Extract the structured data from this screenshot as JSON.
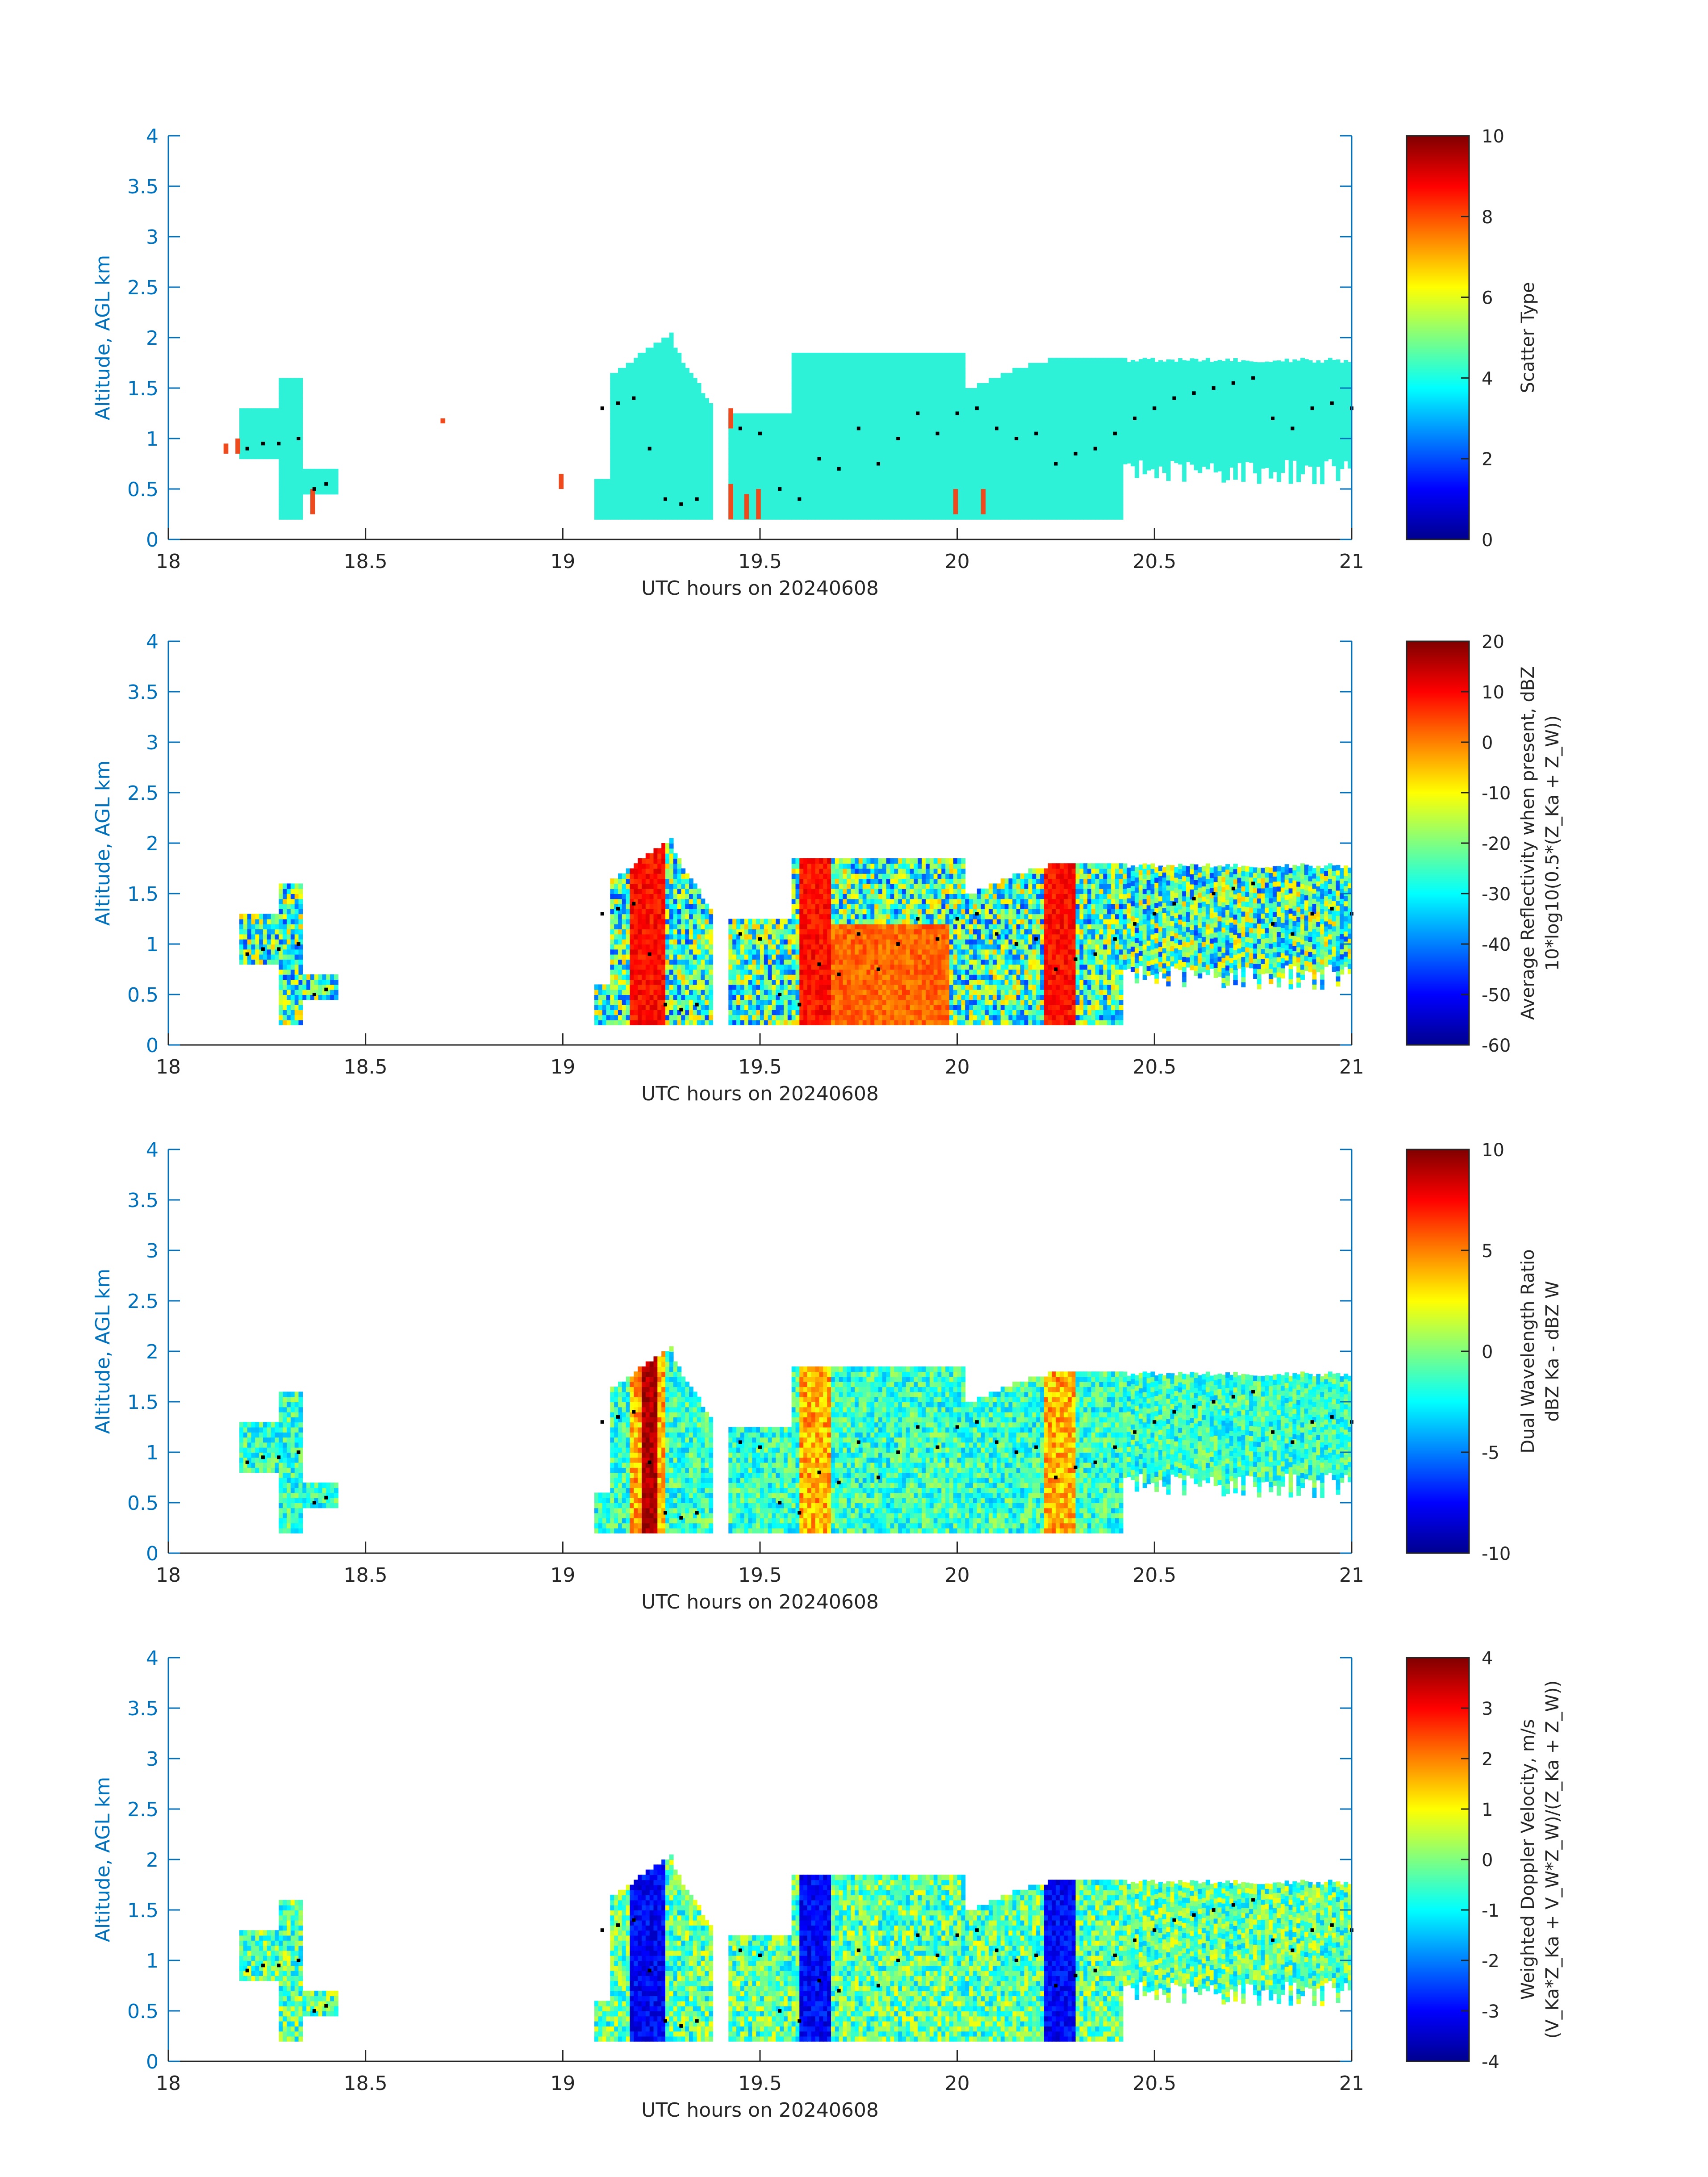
{
  "colors": {
    "axis": "#0072bd",
    "text": "#262626",
    "marker": "#000000",
    "scatter_main": "#2ef2d8",
    "scatter_secondary": "#ee4a1e"
  },
  "panels": [
    {
      "colorbar": {
        "label": "Scatter Type",
        "label2": "",
        "min": 0,
        "max": 10,
        "ticks": [
          "10",
          "8",
          "6",
          "4",
          "2",
          "0"
        ]
      }
    },
    {
      "colorbar": {
        "label": "Average Reflectivity when present, dBZ",
        "label2": "10*log10(0.5*(Z_Ka + Z_W))",
        "min": -60,
        "max": 20,
        "ticks": [
          "20",
          "10",
          "0",
          "-10",
          "-20",
          "-30",
          "-40",
          "-50",
          "-60"
        ]
      }
    },
    {
      "colorbar": {
        "label": "Dual Wavelength Ratio",
        "label2": "dBZ Ka - dBZ W",
        "min": -10,
        "max": 10,
        "ticks": [
          "10",
          "5",
          "0",
          "-5",
          "-10"
        ]
      }
    },
    {
      "colorbar": {
        "label": "Weighted Doppler Velocity, m/s",
        "label2": "(V_Ka*Z_Ka + V_W*Z_W)/(Z_Ka + Z_W))",
        "min": -4,
        "max": 4,
        "ticks": [
          "4",
          "3",
          "2",
          "1",
          "0",
          "-1",
          "-2",
          "-3",
          "-4"
        ]
      }
    }
  ],
  "chart_data": [
    {
      "type": "heatmap",
      "xlabel": "UTC hours on 20240608",
      "ylabel": "Altitude, AGL km",
      "xlim": [
        18,
        21
      ],
      "ylim": [
        0,
        4
      ],
      "xticks": [
        "18",
        "18.5",
        "19",
        "19.5",
        "20",
        "20.5",
        "21"
      ],
      "yticks": [
        "0",
        "0.5",
        "1",
        "1.5",
        "2",
        "2.5",
        "3",
        "3.5",
        "4"
      ],
      "colorbar_label": "Scatter Type",
      "clim": [
        0,
        10
      ],
      "echo_regions": [
        {
          "x0": 18.28,
          "x1": 18.42,
          "bottom": 0.2,
          "top": 1.6
        },
        {
          "x0": 18.18,
          "x1": 18.28,
          "bottom": 0.8,
          "top": 1.4
        },
        {
          "x0": 19.08,
          "x1": 19.38,
          "bottom": 0.2,
          "top": 2.05
        },
        {
          "x0": 19.42,
          "x1": 19.6,
          "bottom": 0.2,
          "top": 1.3
        },
        {
          "x0": 19.6,
          "x1": 20.05,
          "bottom": 0.2,
          "top": 1.95
        },
        {
          "x0": 20.05,
          "x1": 20.4,
          "bottom": 0.2,
          "top": 1.8
        },
        {
          "x0": 20.4,
          "x1": 21.0,
          "bottom": 0.5,
          "top": 1.85
        }
      ],
      "secondary_type_patches": [
        {
          "x": 18.14,
          "bottom": 0.85,
          "top": 0.95
        },
        {
          "x": 18.17,
          "bottom": 0.85,
          "top": 1.0
        },
        {
          "x": 18.36,
          "bottom": 0.25,
          "top": 0.5
        },
        {
          "x": 18.69,
          "bottom": 1.15,
          "top": 1.2
        },
        {
          "x": 18.99,
          "bottom": 0.5,
          "top": 0.65
        },
        {
          "x": 19.42,
          "bottom": 1.1,
          "top": 1.3
        },
        {
          "x": 19.42,
          "bottom": 0.2,
          "top": 0.55
        },
        {
          "x": 19.46,
          "bottom": 0.2,
          "top": 0.45
        },
        {
          "x": 19.49,
          "bottom": 0.2,
          "top": 0.5
        },
        {
          "x": 19.99,
          "bottom": 0.25,
          "top": 0.5
        },
        {
          "x": 20.06,
          "bottom": 0.25,
          "top": 0.5
        }
      ]
    },
    {
      "type": "heatmap",
      "xlabel": "UTC hours on 20240608",
      "ylabel": "Altitude, AGL km",
      "xlim": [
        18,
        21
      ],
      "ylim": [
        0,
        4
      ],
      "xticks": [
        "18",
        "18.5",
        "19",
        "19.5",
        "20",
        "20.5",
        "21"
      ],
      "yticks": [
        "0",
        "0.5",
        "1",
        "1.5",
        "2",
        "2.5",
        "3",
        "3.5",
        "4"
      ],
      "colorbar_label": "Average Reflectivity when present, dBZ",
      "clim": [
        -60,
        20
      ]
    },
    {
      "type": "heatmap",
      "xlabel": "UTC hours on 20240608",
      "ylabel": "Altitude, AGL km",
      "xlim": [
        18,
        21
      ],
      "ylim": [
        0,
        4
      ],
      "xticks": [
        "18",
        "18.5",
        "19",
        "19.5",
        "20",
        "20.5",
        "21"
      ],
      "yticks": [
        "0",
        "0.5",
        "1",
        "1.5",
        "2",
        "2.5",
        "3",
        "3.5",
        "4"
      ],
      "colorbar_label": "Dual Wavelength Ratio",
      "clim": [
        -10,
        10
      ]
    },
    {
      "type": "heatmap",
      "xlabel": "UTC hours on 20240608",
      "ylabel": "Altitude, AGL km",
      "xlim": [
        18,
        21
      ],
      "ylim": [
        0,
        4
      ],
      "xticks": [
        "18",
        "18.5",
        "19",
        "19.5",
        "20",
        "20.5",
        "21"
      ],
      "yticks": [
        "0",
        "0.5",
        "1",
        "1.5",
        "2",
        "2.5",
        "3",
        "3.5",
        "4"
      ],
      "colorbar_label": "Weighted Doppler Velocity, m/s",
      "clim": [
        -4,
        4
      ]
    }
  ],
  "cloud_base_markers": {
    "x": [
      18.2,
      18.24,
      18.28,
      18.33,
      18.37,
      18.4,
      19.1,
      19.14,
      19.18,
      19.22,
      19.26,
      19.3,
      19.34,
      19.45,
      19.5,
      19.55,
      19.6,
      19.65,
      19.7,
      19.75,
      19.8,
      19.85,
      19.9,
      19.95,
      20.0,
      20.05,
      20.1,
      20.15,
      20.2,
      20.25,
      20.3,
      20.35,
      20.4,
      20.45,
      20.5,
      20.55,
      20.6,
      20.65,
      20.7,
      20.75,
      20.8,
      20.85,
      20.9,
      20.95,
      21.0
    ],
    "y": [
      0.9,
      0.95,
      0.95,
      1.0,
      0.5,
      0.55,
      1.3,
      1.35,
      1.4,
      0.9,
      0.4,
      0.35,
      0.4,
      1.1,
      1.05,
      0.5,
      0.4,
      0.8,
      0.7,
      1.1,
      0.75,
      1.0,
      1.25,
      1.05,
      1.25,
      1.3,
      1.1,
      1.0,
      1.05,
      0.75,
      0.85,
      0.9,
      1.05,
      1.2,
      1.3,
      1.4,
      1.45,
      1.5,
      1.55,
      1.6,
      1.2,
      1.1,
      1.3,
      1.35,
      1.3
    ]
  }
}
